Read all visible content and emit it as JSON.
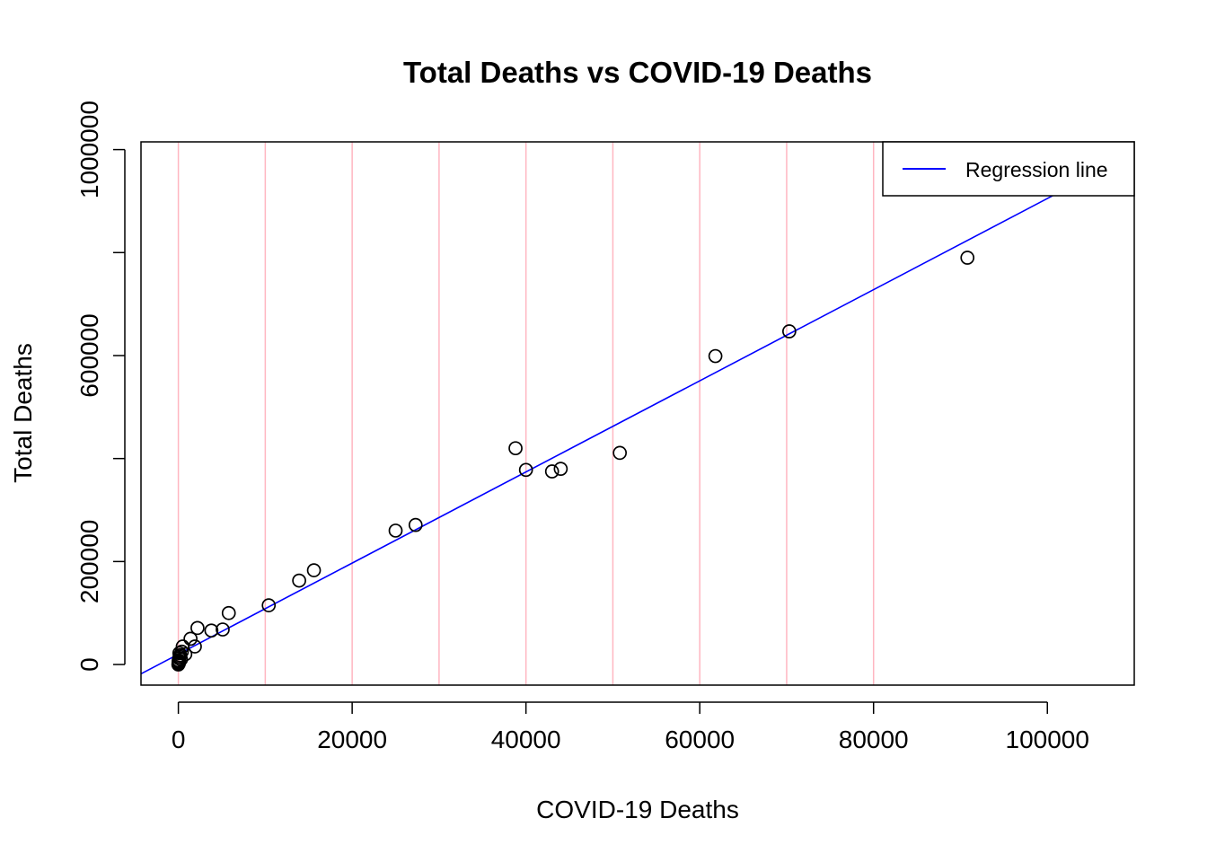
{
  "chart_data": {
    "type": "scatter",
    "title": "Total Deaths vs COVID-19 Deaths",
    "xlabel": "COVID-19 Deaths",
    "ylabel": "Total Deaths",
    "xlim": [
      -4300,
      110000
    ],
    "ylim": [
      -40000,
      1015000
    ],
    "x_ticks": [
      0,
      20000,
      40000,
      60000,
      80000,
      100000
    ],
    "x_tick_labels": [
      "0",
      "20000",
      "40000",
      "60000",
      "80000",
      "100000"
    ],
    "y_ticks": [
      0,
      200000,
      400000,
      600000,
      800000,
      1000000
    ],
    "y_tick_labels": [
      "0",
      "200000",
      "",
      "600000",
      "",
      "1000000"
    ],
    "vertical_grid_lines": [
      0,
      10000,
      20000,
      30000,
      40000,
      50000,
      60000,
      70000,
      80000
    ],
    "grid_color": "#ffb6c1",
    "point_color": "#000000",
    "regression": {
      "name": "Regression line",
      "intercept": 20000,
      "slope": 8.85,
      "color": "#0000ff"
    },
    "legend": {
      "position": "top-right",
      "entries": [
        "Regression line"
      ]
    },
    "points": [
      {
        "x": 0,
        "y": 0
      },
      {
        "x": 20,
        "y": 4000
      },
      {
        "x": 40,
        "y": 8000
      },
      {
        "x": 60,
        "y": 2000
      },
      {
        "x": 100,
        "y": 12000
      },
      {
        "x": 80,
        "y": 6000
      },
      {
        "x": 150,
        "y": 15000
      },
      {
        "x": 200,
        "y": 18000
      },
      {
        "x": 120,
        "y": 22000
      },
      {
        "x": 300,
        "y": 10000
      },
      {
        "x": 400,
        "y": 25000
      },
      {
        "x": 500,
        "y": 35000
      },
      {
        "x": 800,
        "y": 20000
      },
      {
        "x": 1400,
        "y": 50000
      },
      {
        "x": 1900,
        "y": 35000
      },
      {
        "x": 2200,
        "y": 71000
      },
      {
        "x": 3800,
        "y": 66000
      },
      {
        "x": 5100,
        "y": 68000
      },
      {
        "x": 5800,
        "y": 100000
      },
      {
        "x": 10400,
        "y": 115000
      },
      {
        "x": 13900,
        "y": 163000
      },
      {
        "x": 15600,
        "y": 183000
      },
      {
        "x": 25000,
        "y": 260000
      },
      {
        "x": 27300,
        "y": 271000
      },
      {
        "x": 38800,
        "y": 420000
      },
      {
        "x": 40000,
        "y": 378000
      },
      {
        "x": 43000,
        "y": 375000
      },
      {
        "x": 44000,
        "y": 380000
      },
      {
        "x": 50800,
        "y": 411000
      },
      {
        "x": 61800,
        "y": 599000
      },
      {
        "x": 70300,
        "y": 647000
      },
      {
        "x": 90800,
        "y": 790000
      }
    ]
  }
}
